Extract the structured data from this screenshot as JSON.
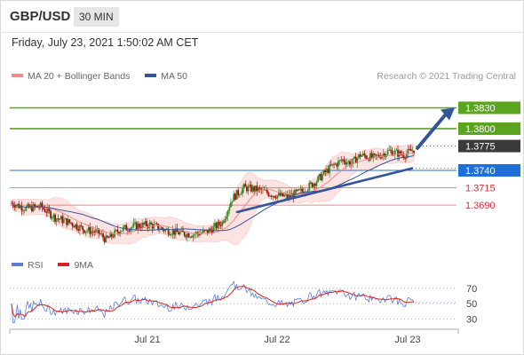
{
  "header": {
    "symbol": "GBP/USD",
    "timeframe": "30 MIN",
    "datetime": "Friday, July 23, 2021 1:50:02 AM CET"
  },
  "legend": {
    "items": [
      {
        "label": "MA 20 + Bollinger Bands",
        "color": "#f08a8a"
      },
      {
        "label": "MA 50",
        "color": "#34559a"
      }
    ],
    "credit": "Research © 2021 Trading Central"
  },
  "rsi_legend": {
    "items": [
      {
        "label": "RSI",
        "color": "#5b7fd6"
      },
      {
        "label": "9MA",
        "color": "#e02020"
      }
    ]
  },
  "colors": {
    "bull": "#3a8a2a",
    "bear": "#a01010",
    "resistance": "#5aa51e",
    "pivot": "#1f6fd6",
    "support": "#e8868a",
    "current": "#3a3a3a"
  },
  "chart_data": [
    {
      "type": "candlestick",
      "symbol": "GBP/USD",
      "timeframe": "30 MIN",
      "y_range": [
        1.3625,
        1.386
      ],
      "levels": [
        {
          "price": 1.383,
          "label": "1.3830",
          "kind": "resistance"
        },
        {
          "price": 1.38,
          "label": "1.3800",
          "kind": "resistance"
        },
        {
          "price": 1.3775,
          "label": "1.3775",
          "kind": "current"
        },
        {
          "price": 1.374,
          "label": "1.3740",
          "kind": "pivot"
        },
        {
          "price": 1.3715,
          "label": "1.3715",
          "kind": "support"
        },
        {
          "price": 1.369,
          "label": "1.3690",
          "kind": "support"
        }
      ],
      "x_labels": [
        "Jul 21",
        "Jul 22",
        "Jul 23"
      ],
      "trendline": {
        "from": 1.368,
        "to": 1.3743
      },
      "projection": {
        "from": 1.3772,
        "to": 1.383
      }
    },
    {
      "type": "line",
      "name": "RSI",
      "y_ticks": [
        70,
        50,
        30
      ],
      "y_range": [
        20,
        85
      ]
    }
  ]
}
